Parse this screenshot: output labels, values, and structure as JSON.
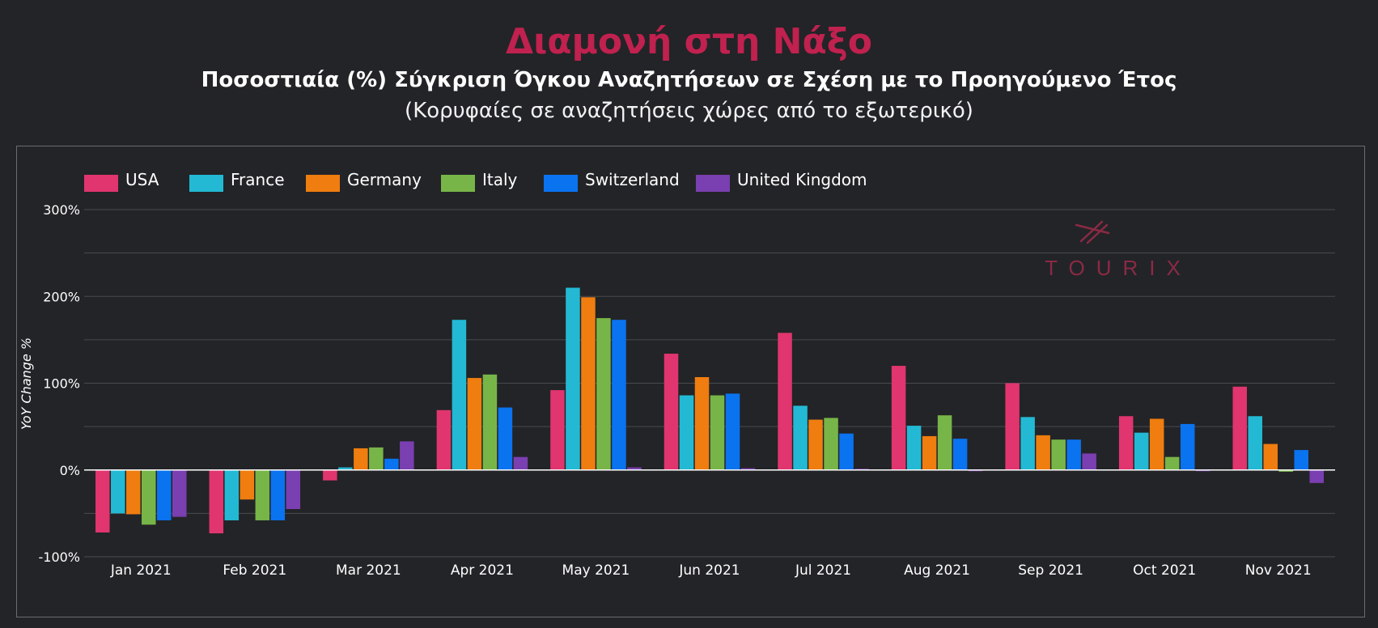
{
  "header": {
    "title": "Διαμονή στη Νάξο",
    "subtitle": "Ποσοστιαία (%) Σύγκριση Όγκου Αναζητήσεων σε Σχέση με το Προηγούμενο Έτος",
    "caption": "(Κορυφαίες σε αναζητήσεις χώρες από το εξωτερικό)"
  },
  "logo": {
    "text": "TOURIX"
  },
  "colors": {
    "background": "#232427",
    "title": "#c0214f",
    "grid": "#4a4b4f",
    "zero_line": "#ffffff",
    "logo": "#8a2a45"
  },
  "chart_data": {
    "type": "bar",
    "ylabel": "YoY Change %",
    "ylim": [
      -100,
      300
    ],
    "yticks": [
      -100,
      0,
      100,
      200,
      300
    ],
    "ytick_labels": [
      "-100%",
      "0%",
      "100%",
      "200%",
      "300%"
    ],
    "grid": true,
    "legend_position": "top-left",
    "categories": [
      "Jan 2021",
      "Feb 2021",
      "Mar 2021",
      "Apr 2021",
      "May 2021",
      "Jun 2021",
      "Jul 2021",
      "Aug 2021",
      "Sep 2021",
      "Oct 2021",
      "Nov 2021"
    ],
    "series": [
      {
        "name": "USA",
        "color": "#e0356e",
        "values": [
          -72,
          -73,
          -12,
          69,
          92,
          134,
          158,
          120,
          100,
          62,
          96
        ]
      },
      {
        "name": "France",
        "color": "#23b9d4",
        "values": [
          -50,
          -58,
          3,
          173,
          210,
          86,
          74,
          51,
          61,
          43,
          62
        ]
      },
      {
        "name": "Germany",
        "color": "#ef7d0f",
        "values": [
          -51,
          -34,
          25,
          106,
          199,
          107,
          58,
          39,
          40,
          59,
          30
        ]
      },
      {
        "name": "Italy",
        "color": "#77b548",
        "values": [
          -63,
          -58,
          26,
          110,
          175,
          86,
          60,
          63,
          35,
          15,
          -2
        ]
      },
      {
        "name": "Switzerland",
        "color": "#0a73f0",
        "values": [
          -58,
          -58,
          13,
          72,
          173,
          88,
          42,
          36,
          35,
          53,
          23
        ]
      },
      {
        "name": "United Kingdom",
        "color": "#7a3fb0",
        "values": [
          -54,
          -45,
          33,
          15,
          3,
          2,
          0,
          -1,
          19,
          -1,
          -15
        ]
      }
    ]
  }
}
